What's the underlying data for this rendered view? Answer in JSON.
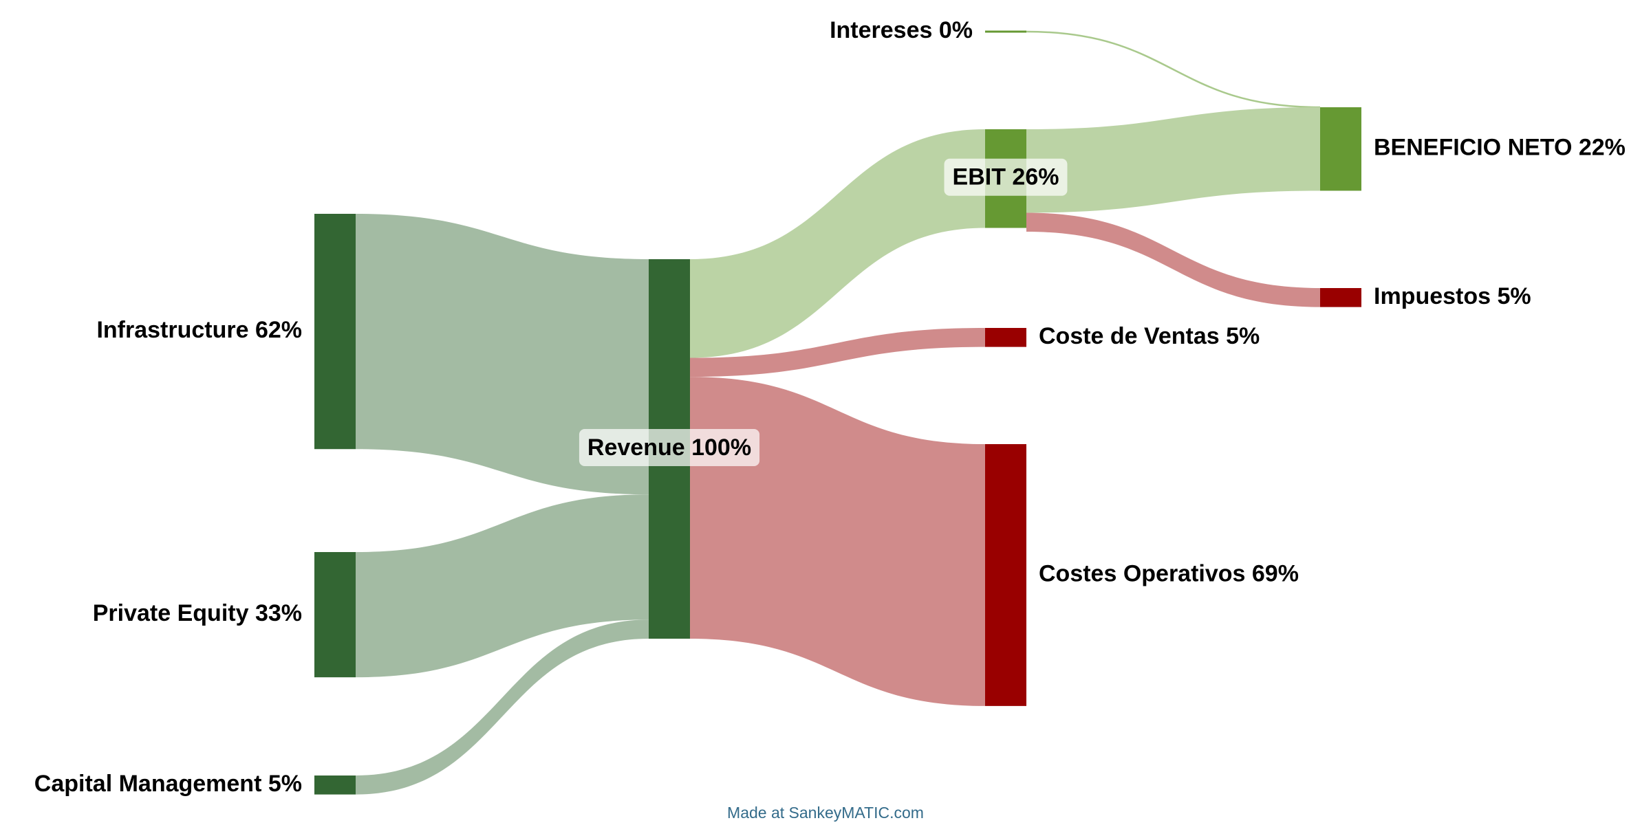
{
  "colors": {
    "source_node": "#336633",
    "source_flow": "#a3bba3",
    "profit_node": "#669933",
    "profit_flow": "#bbd3a5",
    "cost_node": "#990000",
    "cost_flow": "#d08b8b",
    "label_bg": "#ffffff",
    "credit_text": "#336b8a"
  },
  "chart_data": {
    "type": "sankey",
    "nodes": [
      {
        "id": "infrastructure",
        "label": "Infrastructure 62%",
        "value": 62,
        "kind": "source"
      },
      {
        "id": "private_equity",
        "label": "Private Equity 33%",
        "value": 33,
        "kind": "source"
      },
      {
        "id": "capital_management",
        "label": "Capital Management 5%",
        "value": 5,
        "kind": "source"
      },
      {
        "id": "revenue",
        "label": "Revenue 100%",
        "value": 100,
        "kind": "source"
      },
      {
        "id": "intereses",
        "label": "Intereses 0%",
        "value": 0,
        "kind": "profit"
      },
      {
        "id": "ebit",
        "label": "EBIT 26%",
        "value": 26,
        "kind": "profit"
      },
      {
        "id": "coste_ventas",
        "label": "Coste de Ventas 5%",
        "value": 5,
        "kind": "cost"
      },
      {
        "id": "costes_operativos",
        "label": "Costes Operativos 69%",
        "value": 69,
        "kind": "cost"
      },
      {
        "id": "beneficio_neto",
        "label": "BENEFICIO NETO 22%",
        "value": 22,
        "kind": "profit"
      },
      {
        "id": "impuestos",
        "label": "Impuestos 5%",
        "value": 5,
        "kind": "cost"
      }
    ],
    "flows": [
      {
        "from": "infrastructure",
        "to": "revenue",
        "value": 62
      },
      {
        "from": "private_equity",
        "to": "revenue",
        "value": 33
      },
      {
        "from": "capital_management",
        "to": "revenue",
        "value": 5
      },
      {
        "from": "revenue",
        "to": "ebit",
        "value": 26
      },
      {
        "from": "revenue",
        "to": "coste_ventas",
        "value": 5
      },
      {
        "from": "revenue",
        "to": "costes_operativos",
        "value": 69
      },
      {
        "from": "intereses",
        "to": "beneficio_neto",
        "value": 0
      },
      {
        "from": "ebit",
        "to": "beneficio_neto",
        "value": 22
      },
      {
        "from": "ebit",
        "to": "impuestos",
        "value": 5
      }
    ]
  },
  "credit": "Made at SankeyMATIC.com"
}
